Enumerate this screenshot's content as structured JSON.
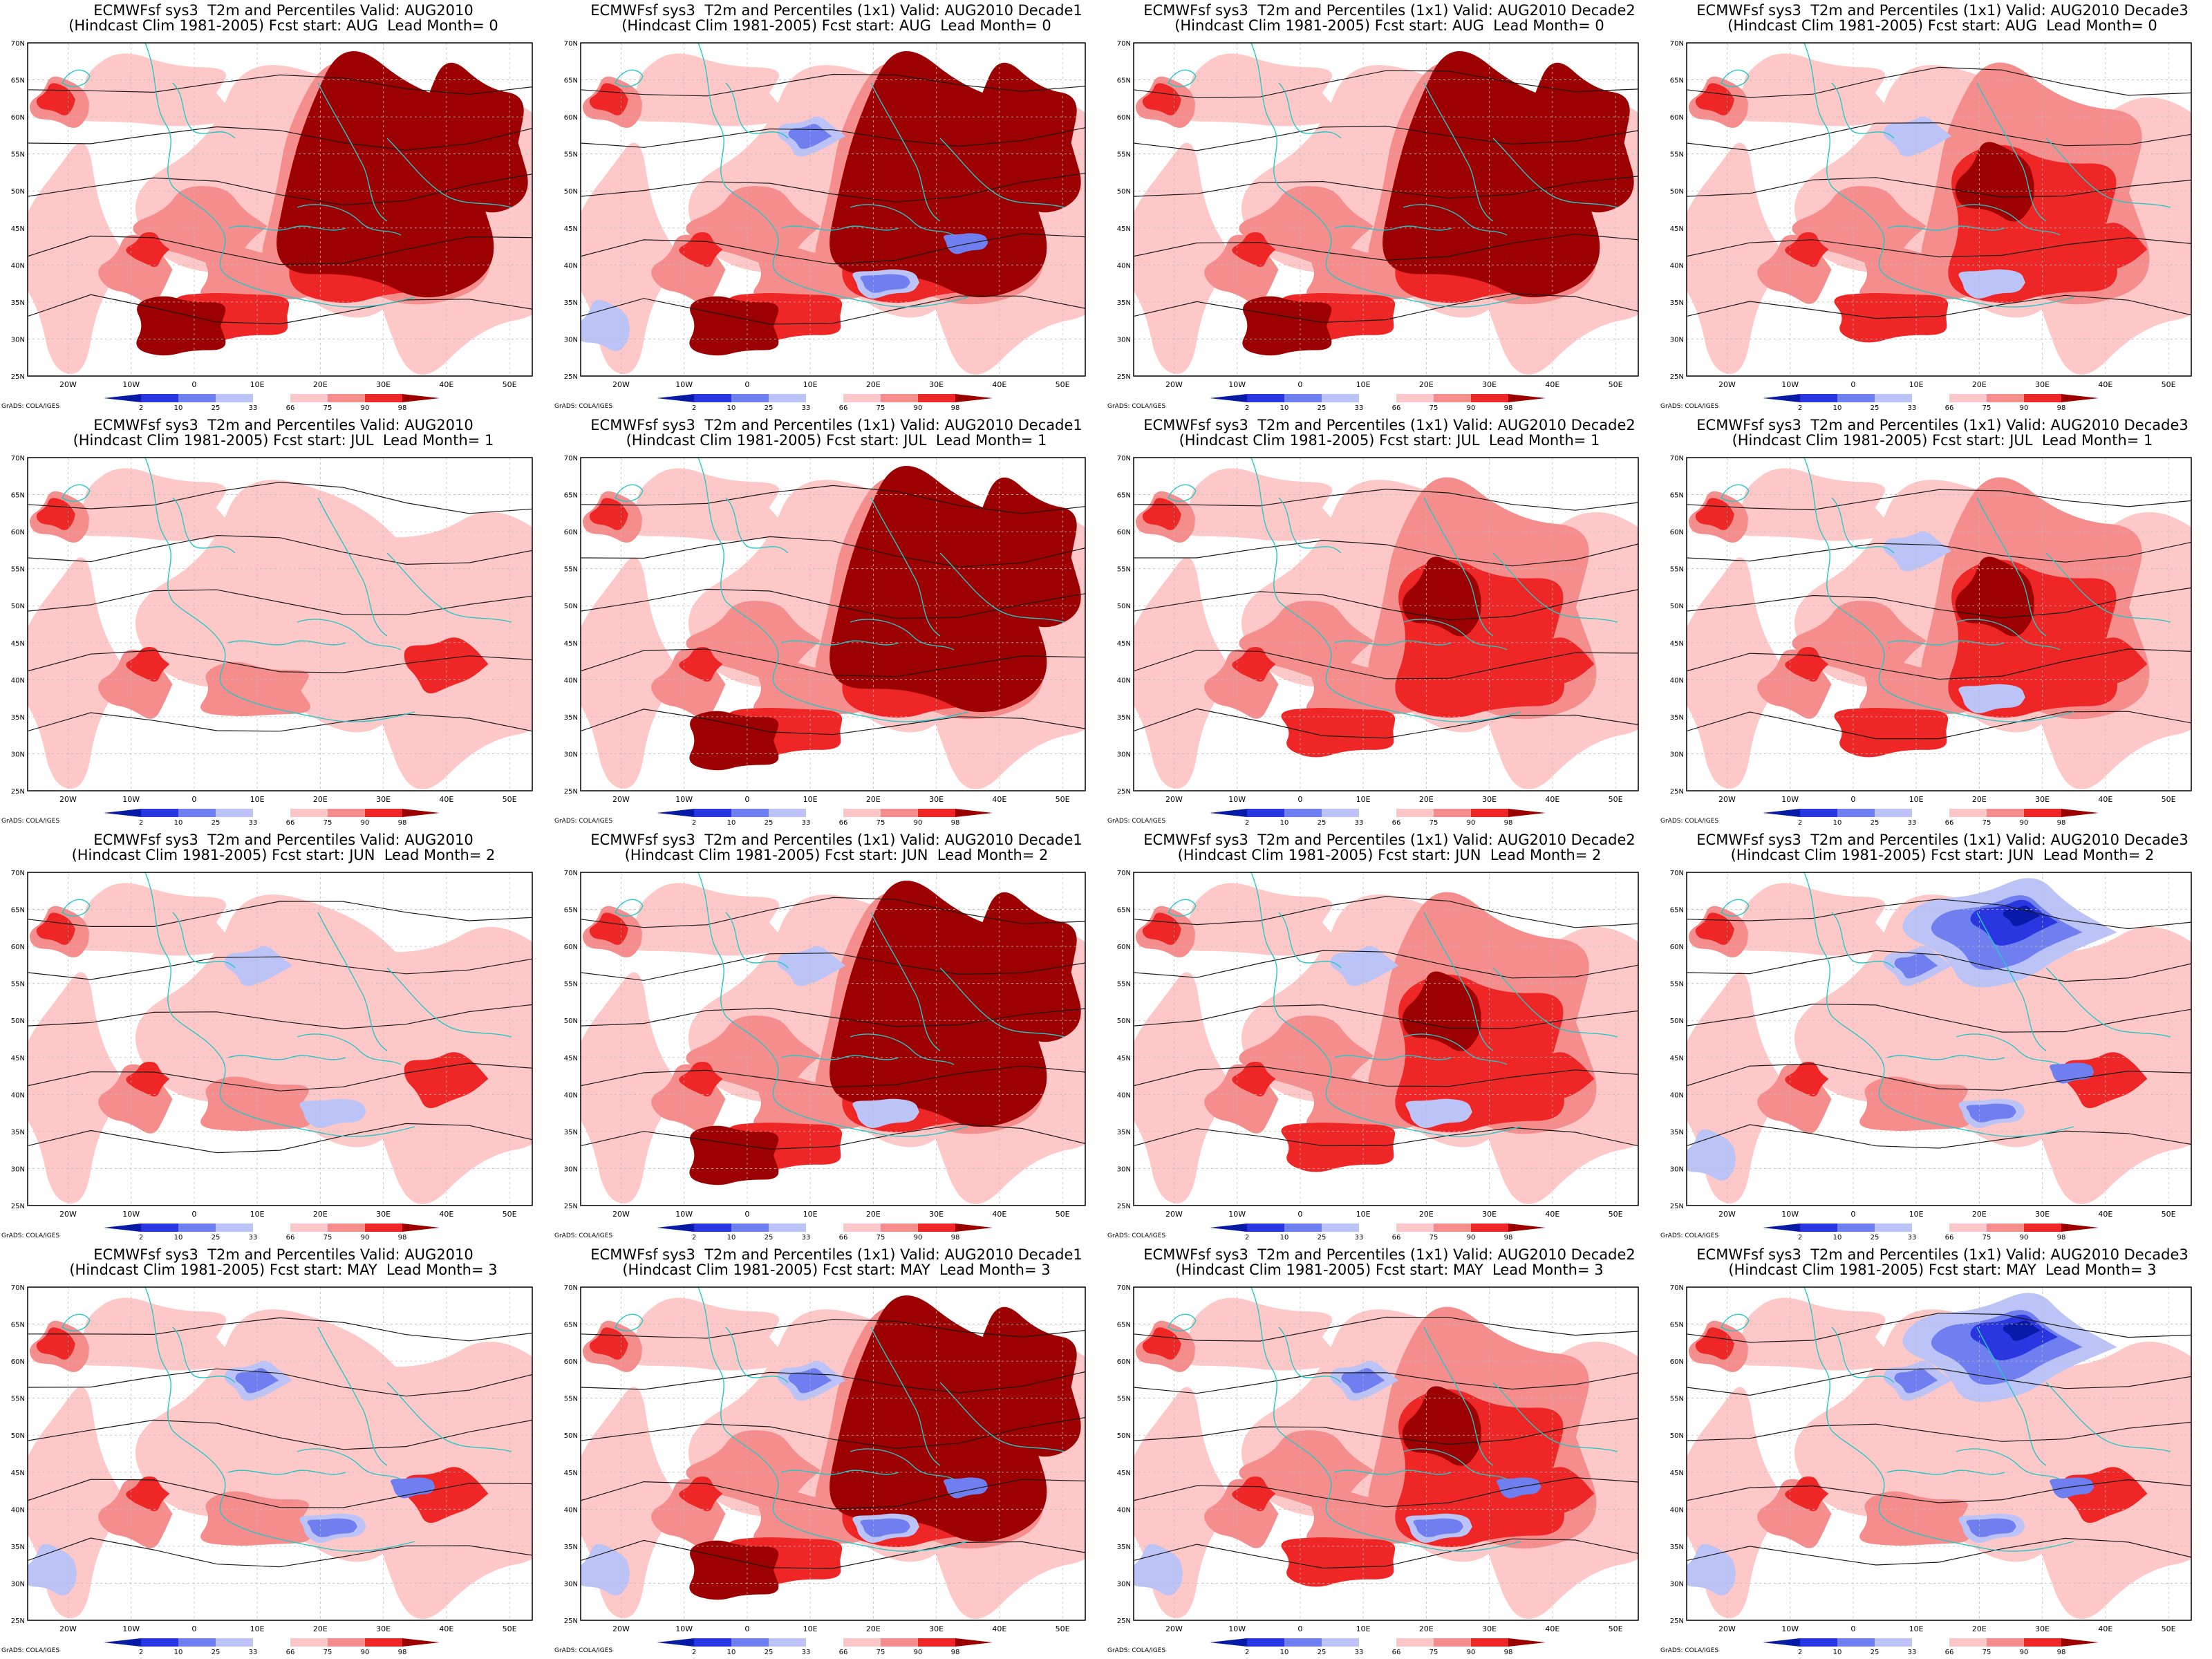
{
  "figure": {
    "credit": "GrADS: COLA/IGES",
    "title_model": "ECMWFsf sys3  T2m and Percentiles",
    "hindcast": "(Hindcast Clim 1981-2005)",
    "lat_labels": [
      "70N",
      "65N",
      "60N",
      "55N",
      "50N",
      "45N",
      "40N",
      "35N",
      "30N",
      "25N"
    ],
    "lon_labels": [
      "20W",
      "10W",
      "0",
      "10E",
      "20E",
      "30E",
      "40E",
      "50E"
    ]
  },
  "colorbar": {
    "labels": [
      "2",
      "10",
      "25",
      "33",
      "66",
      "75",
      "90",
      "98"
    ],
    "colors": [
      "#0a1aa8",
      "#2a36e0",
      "#6f7ff0",
      "#bcc3f7",
      "#ffffff",
      "#ffc8c8",
      "#f58d8d",
      "#ee2626",
      "#9c0000"
    ]
  },
  "panels": [
    {
      "row": 0,
      "col": 0,
      "line1": "ECMWFsf sys3  T2m and Percentiles Valid: AUG2010",
      "line2": "(Hindcast Clim 1981-2005) Fcst start: AUG  Lead Month= 0",
      "warm": 3,
      "cold": 0
    },
    {
      "row": 0,
      "col": 1,
      "line1": "ECMWFsf sys3  T2m and Percentiles (1x1) Valid: AUG2010 Decade1",
      "line2": "(Hindcast Clim 1981-2005) Fcst start: AUG  Lead Month= 0",
      "warm": 3,
      "cold": 2
    },
    {
      "row": 0,
      "col": 2,
      "line1": "ECMWFsf sys3  T2m and Percentiles (1x1) Valid: AUG2010 Decade2",
      "line2": "(Hindcast Clim 1981-2005) Fcst start: AUG  Lead Month= 0",
      "warm": 3,
      "cold": 0
    },
    {
      "row": 0,
      "col": 3,
      "line1": "ECMWFsf sys3  T2m and Percentiles (1x1) Valid: AUG2010 Decade3",
      "line2": "(Hindcast Clim 1981-2005) Fcst start: AUG  Lead Month= 0",
      "warm": 2,
      "cold": 1
    },
    {
      "row": 1,
      "col": 0,
      "line1": "ECMWFsf sys3  T2m and Percentiles Valid: AUG2010",
      "line2": "(Hindcast Clim 1981-2005) Fcst start: JUL  Lead Month= 1",
      "warm": 1,
      "cold": 0
    },
    {
      "row": 1,
      "col": 1,
      "line1": "ECMWFsf sys3  T2m and Percentiles (1x1) Valid: AUG2010 Decade1",
      "line2": "(Hindcast Clim 1981-2005) Fcst start: JUL  Lead Month= 1",
      "warm": 3,
      "cold": 0
    },
    {
      "row": 1,
      "col": 2,
      "line1": "ECMWFsf sys3  T2m and Percentiles (1x1) Valid: AUG2010 Decade2",
      "line2": "(Hindcast Clim 1981-2005) Fcst start: JUL  Lead Month= 1",
      "warm": 2,
      "cold": 0
    },
    {
      "row": 1,
      "col": 3,
      "line1": "ECMWFsf sys3  T2m and Percentiles (1x1) Valid: AUG2010 Decade3",
      "line2": "(Hindcast Clim 1981-2005) Fcst start: JUL  Lead Month= 1",
      "warm": 2,
      "cold": 1
    },
    {
      "row": 2,
      "col": 0,
      "line1": "ECMWFsf sys3  T2m and Percentiles Valid: AUG2010",
      "line2": "(Hindcast Clim 1981-2005) Fcst start: JUN  Lead Month= 2",
      "warm": 1,
      "cold": 1
    },
    {
      "row": 2,
      "col": 1,
      "line1": "ECMWFsf sys3  T2m and Percentiles (1x1) Valid: AUG2010 Decade1",
      "line2": "(Hindcast Clim 1981-2005) Fcst start: JUN  Lead Month= 2",
      "warm": 3,
      "cold": 1
    },
    {
      "row": 2,
      "col": 2,
      "line1": "ECMWFsf sys3  T2m and Percentiles (1x1) Valid: AUG2010 Decade2",
      "line2": "(Hindcast Clim 1981-2005) Fcst start: JUN  Lead Month= 2",
      "warm": 2,
      "cold": 1
    },
    {
      "row": 2,
      "col": 3,
      "line1": "ECMWFsf sys3  T2m and Percentiles (1x1) Valid: AUG2010 Decade3",
      "line2": "(Hindcast Clim 1981-2005) Fcst start: JUN  Lead Month= 2",
      "warm": 1,
      "cold": 3
    },
    {
      "row": 3,
      "col": 0,
      "line1": "ECMWFsf sys3  T2m and Percentiles Valid: AUG2010",
      "line2": "(Hindcast Clim 1981-2005) Fcst start: MAY  Lead Month= 3",
      "warm": 1,
      "cold": 2
    },
    {
      "row": 3,
      "col": 1,
      "line1": "ECMWFsf sys3  T2m and Percentiles (1x1) Valid: AUG2010 Decade1",
      "line2": "(Hindcast Clim 1981-2005) Fcst start: MAY  Lead Month= 3",
      "warm": 3,
      "cold": 2
    },
    {
      "row": 3,
      "col": 2,
      "line1": "ECMWFsf sys3  T2m and Percentiles (1x1) Valid: AUG2010 Decade2",
      "line2": "(Hindcast Clim 1981-2005) Fcst start: MAY  Lead Month= 3",
      "warm": 2,
      "cold": 2
    },
    {
      "row": 3,
      "col": 3,
      "line1": "ECMWFsf sys3  T2m and Percentiles (1x1) Valid: AUG2010 Decade3",
      "line2": "(Hindcast Clim 1981-2005) Fcst start: MAY  Lead Month= 3",
      "warm": 1,
      "cold": 3
    }
  ]
}
